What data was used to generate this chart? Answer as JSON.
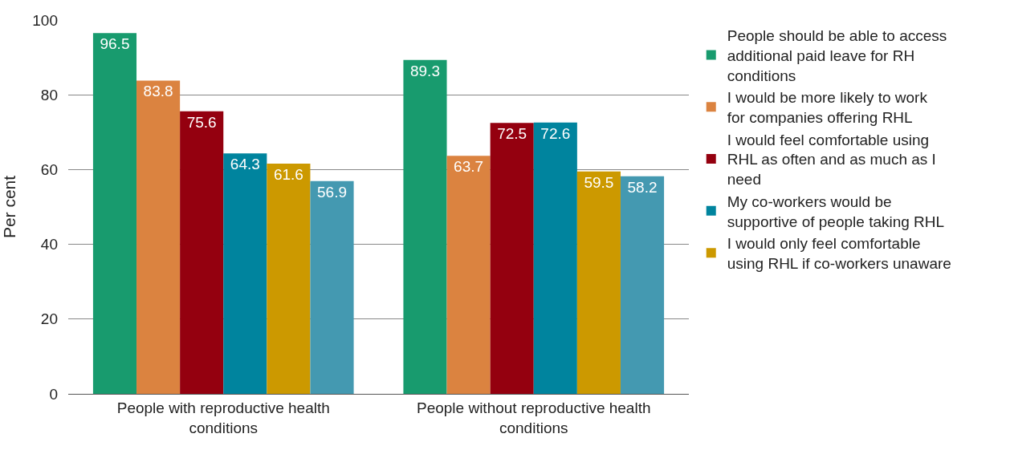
{
  "chart_data": {
    "type": "bar",
    "ylabel": "Per cent",
    "categories": [
      "People with reproductive health conditions",
      "People without reproductive health conditions"
    ],
    "series": [
      {
        "name": "People should be able to access additional paid leave for RH conditions",
        "color": "#189b6e",
        "values": [
          96.5,
          89.3
        ]
      },
      {
        "name": "I would be more likely to work for companies offering RHL",
        "color": "#db8340",
        "values": [
          83.8,
          63.7
        ]
      },
      {
        "name": "I would feel comfortable using RHL as often and as much as I need",
        "color": "#94000f",
        "values": [
          75.6,
          72.5
        ]
      },
      {
        "name": "My co-workers would be supportive of people taking RHL",
        "color": "#00849e",
        "values": [
          64.3,
          72.6
        ]
      },
      {
        "name": "I would only feel comfortable using RHL if co-workers unaware",
        "color": "#cc9900",
        "values": [
          61.6,
          59.5
        ]
      },
      {
        "color": "#4499b1",
        "values": [
          56.9,
          58.2
        ]
      }
    ],
    "ylim": [
      0,
      100
    ],
    "yticks": [
      0,
      20,
      40,
      60,
      80,
      100
    ],
    "grid": "y",
    "legend": "right",
    "data_labels": true
  }
}
